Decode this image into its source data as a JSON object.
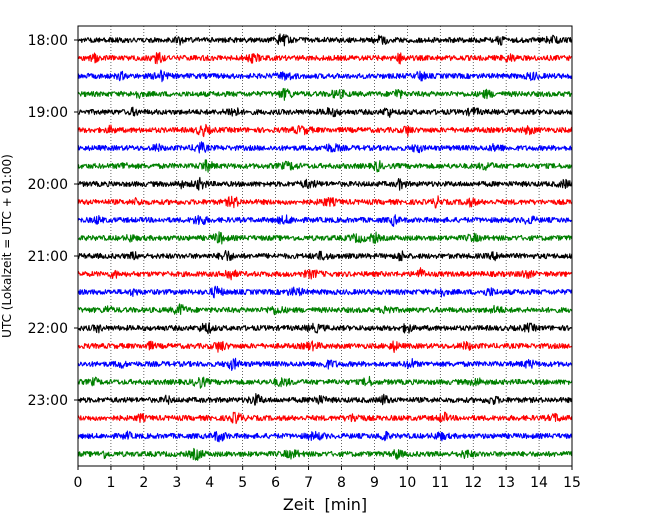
{
  "chart_data": {
    "type": "line",
    "title": "",
    "xlabel": "Zeit  [min]",
    "ylabel": "UTC (Lokalzeit = UTC + 01:00)",
    "xlim": [
      0,
      15
    ],
    "x_ticks": [
      0,
      1,
      2,
      3,
      4,
      5,
      6,
      7,
      8,
      9,
      10,
      11,
      12,
      13,
      14,
      15
    ],
    "y_tick_labels": [
      "18:00",
      "19:00",
      "20:00",
      "21:00",
      "22:00",
      "23:00"
    ],
    "grid": "vertical dotted lines at each minute",
    "legend": "none",
    "trace_interval_minutes": 15,
    "traces": [
      {
        "start": "18:00",
        "color": "#000000"
      },
      {
        "start": "18:15",
        "color": "#ff0000"
      },
      {
        "start": "18:30",
        "color": "#0000ff"
      },
      {
        "start": "18:45",
        "color": "#008000"
      },
      {
        "start": "19:00",
        "color": "#000000"
      },
      {
        "start": "19:15",
        "color": "#ff0000"
      },
      {
        "start": "19:30",
        "color": "#0000ff"
      },
      {
        "start": "19:45",
        "color": "#008000"
      },
      {
        "start": "20:00",
        "color": "#000000"
      },
      {
        "start": "20:15",
        "color": "#ff0000"
      },
      {
        "start": "20:30",
        "color": "#0000ff"
      },
      {
        "start": "20:45",
        "color": "#008000"
      },
      {
        "start": "21:00",
        "color": "#000000"
      },
      {
        "start": "21:15",
        "color": "#ff0000"
      },
      {
        "start": "21:30",
        "color": "#0000ff"
      },
      {
        "start": "21:45",
        "color": "#008000"
      },
      {
        "start": "22:00",
        "color": "#000000"
      },
      {
        "start": "22:15",
        "color": "#ff0000"
      },
      {
        "start": "22:30",
        "color": "#0000ff"
      },
      {
        "start": "22:45",
        "color": "#008000"
      },
      {
        "start": "23:00",
        "color": "#000000"
      },
      {
        "start": "23:15",
        "color": "#ff0000"
      },
      {
        "start": "23:30",
        "color": "#0000ff"
      },
      {
        "start": "23:45",
        "color": "#008000"
      }
    ],
    "bursts_minutes": [
      [
        3.1,
        6.2,
        9.2,
        12.8,
        14.4
      ],
      [
        0.5,
        2.4,
        5.3,
        9.8,
        13.1
      ],
      [
        1.3,
        2.5,
        6.3,
        10.4,
        13.8
      ],
      [
        1.8,
        6.3,
        7.9,
        9.7,
        12.4
      ],
      [
        1.7,
        4.7,
        7.7,
        9.4,
        12.0
      ],
      [
        1.0,
        3.8,
        6.8,
        10.0,
        13.7
      ],
      [
        2.4,
        3.7,
        7.7,
        10.3,
        12.7
      ],
      [
        1.4,
        3.9,
        6.4,
        9.1,
        12.4
      ],
      [
        3.1,
        3.7,
        7.0,
        9.8,
        14.8
      ],
      [
        1.8,
        4.7,
        7.6,
        10.9,
        11.9
      ],
      [
        0.6,
        3.7,
        6.3,
        9.6,
        13.7
      ],
      [
        1.6,
        4.3,
        8.5,
        9.0,
        12.0
      ],
      [
        1.7,
        4.5,
        7.4,
        9.8,
        12.7
      ],
      [
        1.1,
        4.6,
        7.1,
        10.4,
        13.6
      ],
      [
        1.7,
        4.2,
        6.6,
        11.0,
        12.5
      ],
      [
        0.9,
        3.1,
        6.0,
        9.4,
        12.7
      ],
      [
        0.6,
        3.9,
        7.2,
        10.0,
        13.7
      ],
      [
        2.2,
        4.3,
        7.1,
        9.6,
        11.8
      ],
      [
        1.3,
        4.7,
        7.6,
        10.1,
        13.7
      ],
      [
        0.5,
        3.7,
        6.2,
        8.8,
        12.1
      ],
      [
        2.7,
        5.4,
        7.3,
        9.3,
        12.6
      ],
      [
        1.9,
        4.8,
        8.4,
        11.1,
        14.5
      ],
      [
        1.5,
        4.3,
        7.2,
        9.3,
        11.0
      ],
      [
        0.8,
        3.6,
        6.5,
        9.7,
        11.8
      ]
    ]
  }
}
